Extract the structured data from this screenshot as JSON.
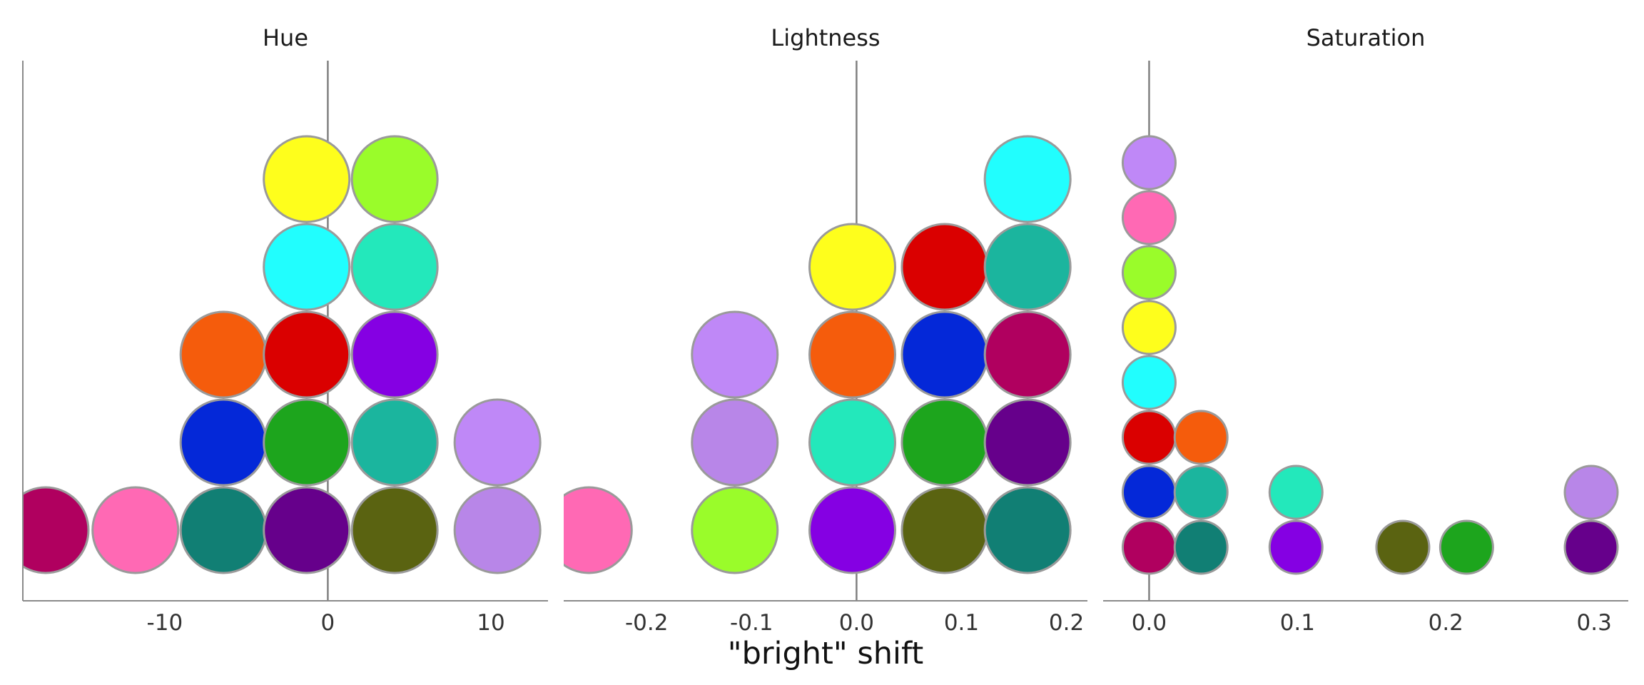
{
  "figure": {
    "xlabel": "\"bright\" shift"
  },
  "chart_data": [
    {
      "type": "scatter",
      "title": "Hue",
      "xlabel": "",
      "ylabel": "",
      "xlim": [
        -18.7,
        13.5
      ],
      "xticks": [
        -10,
        0,
        10
      ],
      "tick_labels": [
        "-10",
        "0",
        "10"
      ],
      "zero_line": 0,
      "grid": false,
      "points": [
        {
          "x": -17.3,
          "row": 0,
          "color": "#B0005F"
        },
        {
          "x": -11.8,
          "row": 0,
          "color": "#FF69B4"
        },
        {
          "x": -6.4,
          "row": 0,
          "color": "#117F74"
        },
        {
          "x": -1.3,
          "row": 0,
          "color": "#66008B"
        },
        {
          "x": 4.1,
          "row": 0,
          "color": "#5A6311"
        },
        {
          "x": 10.4,
          "row": 0,
          "color": "#B886E8"
        },
        {
          "x": -6.4,
          "row": 1,
          "color": "#0428D8"
        },
        {
          "x": -1.3,
          "row": 1,
          "color": "#1DA51D"
        },
        {
          "x": 4.1,
          "row": 1,
          "color": "#1BB59E"
        },
        {
          "x": 10.4,
          "row": 1,
          "color": "#BF88F7"
        },
        {
          "x": -6.4,
          "row": 2,
          "color": "#F55C0C"
        },
        {
          "x": -1.3,
          "row": 2,
          "color": "#DA0000"
        },
        {
          "x": 4.1,
          "row": 2,
          "color": "#8500E3"
        },
        {
          "x": -1.3,
          "row": 3,
          "color": "#21FEFE"
        },
        {
          "x": 4.1,
          "row": 3,
          "color": "#23E8BB"
        },
        {
          "x": -1.3,
          "row": 4,
          "color": "#FEFE1C"
        },
        {
          "x": 4.1,
          "row": 4,
          "color": "#9AFC2A"
        }
      ]
    },
    {
      "type": "scatter",
      "title": "Lightness",
      "xlabel": "",
      "ylabel": "",
      "xlim": [
        -0.279,
        0.22
      ],
      "xticks": [
        -0.2,
        -0.1,
        0.0,
        0.1,
        0.2
      ],
      "tick_labels": [
        "-0.2",
        "-0.1",
        "0.0",
        "0.1",
        "0.2"
      ],
      "zero_line": 0,
      "grid": false,
      "points": [
        {
          "x": -0.255,
          "row": 0,
          "color": "#FF69B4"
        },
        {
          "x": -0.116,
          "row": 0,
          "color": "#9AFC2A"
        },
        {
          "x": -0.004,
          "row": 0,
          "color": "#8500E3"
        },
        {
          "x": 0.084,
          "row": 0,
          "color": "#5A6311"
        },
        {
          "x": 0.163,
          "row": 0,
          "color": "#117F74"
        },
        {
          "x": -0.116,
          "row": 1,
          "color": "#B886E8"
        },
        {
          "x": -0.004,
          "row": 1,
          "color": "#23E8BB"
        },
        {
          "x": 0.084,
          "row": 1,
          "color": "#1DA51D"
        },
        {
          "x": 0.163,
          "row": 1,
          "color": "#66008B"
        },
        {
          "x": -0.116,
          "row": 2,
          "color": "#BF88F7"
        },
        {
          "x": -0.004,
          "row": 2,
          "color": "#F55C0C"
        },
        {
          "x": 0.084,
          "row": 2,
          "color": "#0428D8"
        },
        {
          "x": 0.163,
          "row": 2,
          "color": "#B0005F"
        },
        {
          "x": -0.004,
          "row": 3,
          "color": "#FEFE1C"
        },
        {
          "x": 0.084,
          "row": 3,
          "color": "#DA0000"
        },
        {
          "x": 0.163,
          "row": 3,
          "color": "#1BB59E"
        },
        {
          "x": 0.163,
          "row": 4,
          "color": "#21FEFE"
        }
      ]
    },
    {
      "type": "scatter",
      "title": "Saturation",
      "xlabel": "",
      "ylabel": "",
      "xlim": [
        -0.031,
        0.323
      ],
      "xticks": [
        0.0,
        0.1,
        0.2,
        0.3
      ],
      "tick_labels": [
        "0.0",
        "0.1",
        "0.2",
        "0.3"
      ],
      "zero_line": 0,
      "grid": false,
      "points": [
        {
          "x": 0.0,
          "row": 0,
          "color": "#B0005F"
        },
        {
          "x": 0.035,
          "row": 0,
          "color": "#117F74"
        },
        {
          "x": 0.099,
          "row": 0,
          "color": "#8500E3"
        },
        {
          "x": 0.171,
          "row": 0,
          "color": "#5A6311"
        },
        {
          "x": 0.214,
          "row": 0,
          "color": "#1DA51D"
        },
        {
          "x": 0.298,
          "row": 0,
          "color": "#66008B"
        },
        {
          "x": 0.0,
          "row": 1,
          "color": "#0428D8"
        },
        {
          "x": 0.035,
          "row": 1,
          "color": "#1BB59E"
        },
        {
          "x": 0.099,
          "row": 1,
          "color": "#23E8BB"
        },
        {
          "x": 0.298,
          "row": 1,
          "color": "#B886E8"
        },
        {
          "x": 0.0,
          "row": 2,
          "color": "#DA0000"
        },
        {
          "x": 0.035,
          "row": 2,
          "color": "#F55C0C"
        },
        {
          "x": 0.0,
          "row": 3,
          "color": "#21FEFE"
        },
        {
          "x": 0.0,
          "row": 4,
          "color": "#FEFE1C"
        },
        {
          "x": 0.0,
          "row": 5,
          "color": "#9AFC2A"
        },
        {
          "x": 0.0,
          "row": 6,
          "color": "#FF69B4"
        },
        {
          "x": 0.0,
          "row": 7,
          "color": "#BF88F7"
        }
      ]
    }
  ]
}
